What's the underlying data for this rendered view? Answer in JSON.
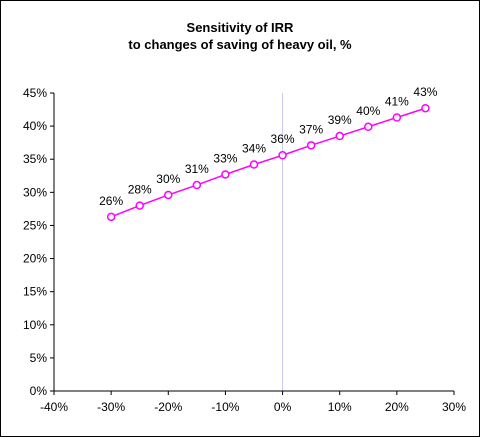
{
  "chart": {
    "title_line1": "Sensitivity of IRR",
    "title_line2": "to changes of saving of heavy oil, %"
  },
  "chart_data": {
    "type": "line",
    "title": "Sensitivity of IRR to changes of saving of heavy oil, %",
    "xlabel": "",
    "ylabel": "",
    "xlim": [
      -40,
      30
    ],
    "ylim": [
      0,
      45
    ],
    "x_ticks": [
      -40,
      -30,
      -20,
      -10,
      0,
      10,
      20,
      30
    ],
    "y_ticks": [
      0,
      5,
      10,
      15,
      20,
      25,
      30,
      35,
      40,
      45
    ],
    "x_tick_labels": [
      "-40%",
      "-30%",
      "-20%",
      "-10%",
      "0%",
      "10%",
      "20%",
      "30%"
    ],
    "y_tick_labels": [
      "0%",
      "5%",
      "10%",
      "15%",
      "20%",
      "25%",
      "30%",
      "35%",
      "40%",
      "45%"
    ],
    "grid": "vertical line at x=0 only",
    "legend": "none",
    "series": [
      {
        "x": [
          -30,
          -25,
          -20,
          -15,
          -10,
          -5,
          0,
          5,
          10,
          15,
          20,
          25
        ],
        "y": [
          26.3,
          28.0,
          29.6,
          31.1,
          32.7,
          34.2,
          35.6,
          37.1,
          38.5,
          39.9,
          41.3,
          42.7
        ],
        "labels": [
          "26%",
          "28%",
          "30%",
          "31%",
          "33%",
          "34%",
          "36%",
          "37%",
          "39%",
          "40%",
          "41%",
          "43%"
        ],
        "color": "#ff00ff"
      }
    ],
    "axis_color": "#000000",
    "zero_line_color": "#c8c8f0"
  }
}
